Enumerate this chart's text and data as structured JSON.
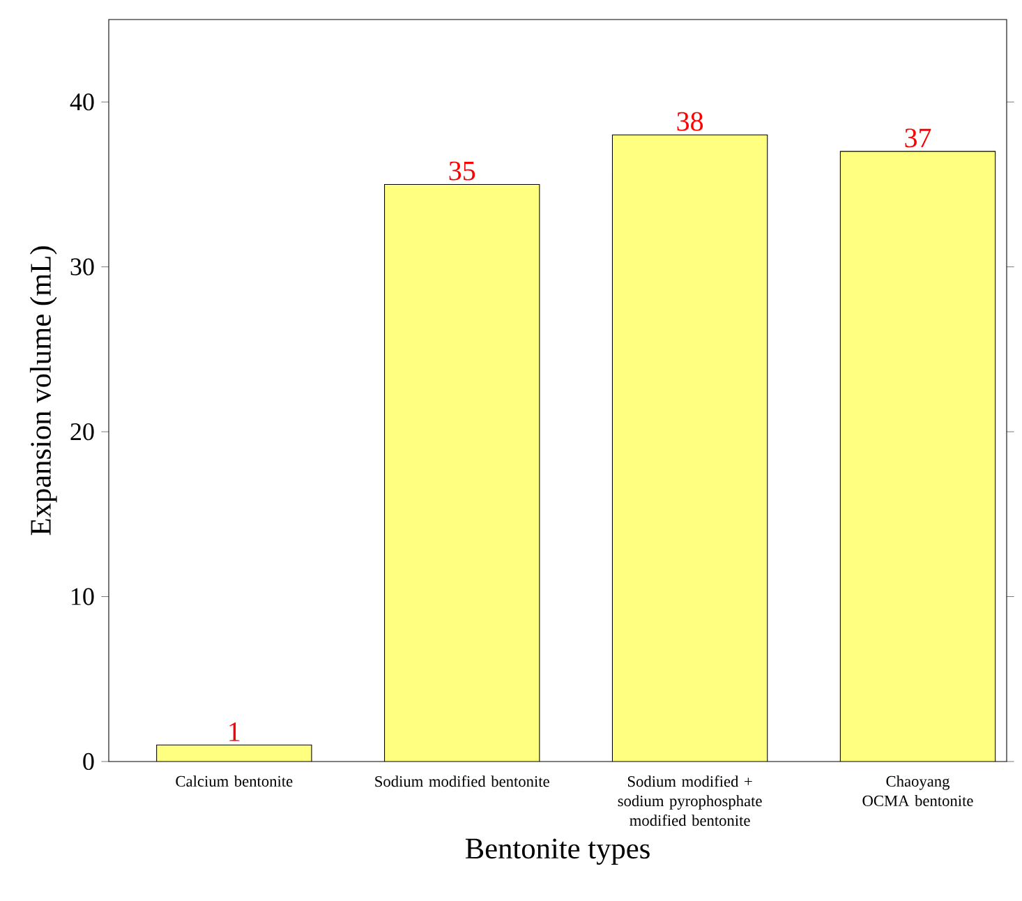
{
  "chart_data": {
    "type": "bar",
    "xlabel": "Bentonite types",
    "ylabel": "Expansion volume (mL)",
    "categories": [
      "Calcium bentonite",
      "Sodium modified bentonite",
      "Sodium modified + sodium pyrophosphate modified bentonite",
      "Chaoyang OCMA bentonite"
    ],
    "values": [
      1,
      35,
      38,
      37
    ],
    "color": "#ffff80",
    "ylim": [
      0,
      45
    ],
    "yticks": [
      0,
      10,
      20,
      30,
      40
    ],
    "data_labels": true,
    "grid": false
  }
}
